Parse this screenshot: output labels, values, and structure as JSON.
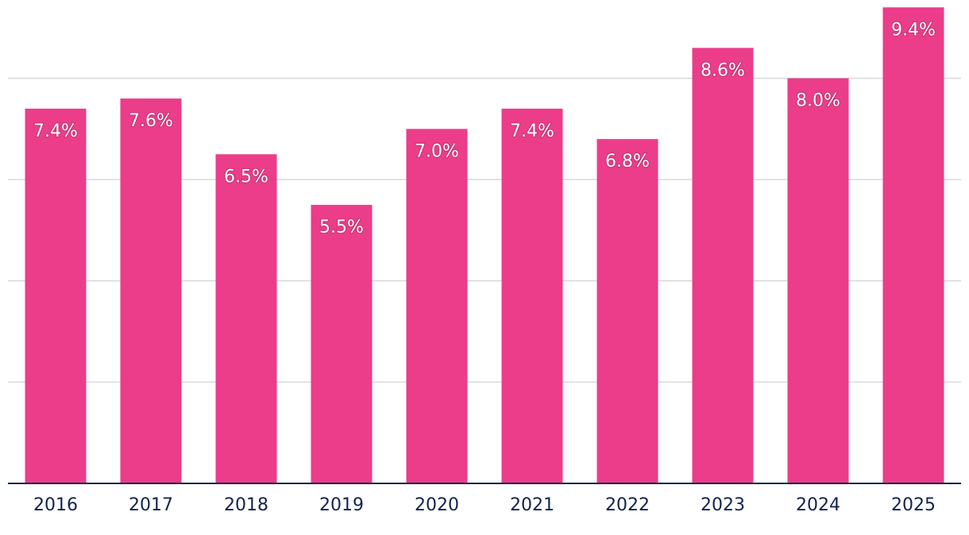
{
  "chart_data": {
    "type": "bar",
    "title": "",
    "xlabel": "",
    "ylabel": "",
    "categories": [
      "2016",
      "2017",
      "2018",
      "2019",
      "2020",
      "2021",
      "2022",
      "2023",
      "2024",
      "2025"
    ],
    "values": [
      7.4,
      7.6,
      6.5,
      5.5,
      7.0,
      7.4,
      6.8,
      8.6,
      8.0,
      9.4
    ],
    "value_labels": [
      "7.4%",
      "7.6%",
      "6.5%",
      "5.5%",
      "7.0%",
      "7.4%",
      "6.8%",
      "8.6%",
      "8.0%",
      "9.4%"
    ],
    "ylim": [
      0,
      10
    ],
    "gridlines": [
      2,
      4,
      6,
      8
    ],
    "grid": true,
    "legend": "none",
    "bar_color": "#eb3d8a",
    "axis_color": "#0f2350",
    "grid_color": "#d9d9d9"
  }
}
